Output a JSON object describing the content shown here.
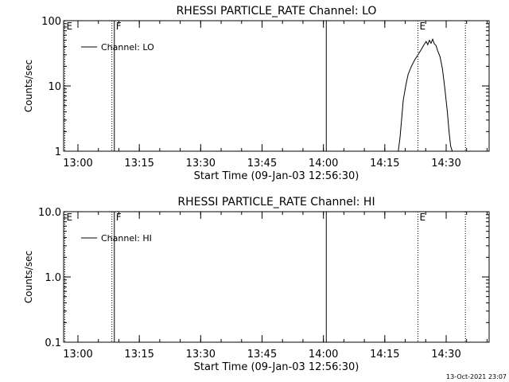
{
  "footer_timestamp": "13-Oct-2021 23:07",
  "chart_data": [
    {
      "type": "line",
      "title": "RHESSI PARTICLE_RATE Channel: LO",
      "xlabel": "Start Time (09-Jan-03 12:56:30)",
      "ylabel": "Counts/sec",
      "yscale": "log",
      "ylim": [
        1,
        100
      ],
      "y_ticks": [
        "1",
        "10",
        "100"
      ],
      "xlim_minutes": [
        0,
        104
      ],
      "x_ticks": [
        {
          "label": "13:00",
          "minute": 3.5
        },
        {
          "label": "13:15",
          "minute": 18.5
        },
        {
          "label": "13:30",
          "minute": 33.5
        },
        {
          "label": "13:45",
          "minute": 48.5
        },
        {
          "label": "14:00",
          "minute": 63.5
        },
        {
          "label": "14:15",
          "minute": 78.5
        },
        {
          "label": "14:30",
          "minute": 93.5
        }
      ],
      "legend": {
        "position": "top-left",
        "entries": [
          "Channel: LO"
        ]
      },
      "markers": [
        {
          "minute": 0.3,
          "style": "dotted",
          "label": "E"
        },
        {
          "minute": 11.8,
          "style": "dotted",
          "label": ""
        },
        {
          "minute": 12.4,
          "style": "solid",
          "label": "F"
        },
        {
          "minute": 64.2,
          "style": "solid",
          "label": ""
        },
        {
          "minute": 86.6,
          "style": "dotted",
          "label": "E"
        },
        {
          "minute": 98.2,
          "style": "dotted",
          "label": ""
        }
      ],
      "series": [
        {
          "name": "Channel: LO",
          "x_minutes": [
            81.8,
            82.2,
            82.6,
            83.0,
            83.6,
            84.2,
            85.0,
            85.8,
            86.6,
            87.4,
            88.0,
            88.6,
            89.0,
            89.4,
            89.8,
            90.2,
            90.6,
            91.0,
            91.4,
            92.0,
            92.6,
            93.2,
            93.8,
            94.2,
            94.6,
            95.0
          ],
          "y": [
            1,
            1.6,
            3,
            6,
            10,
            15,
            20,
            25,
            30,
            36,
            42,
            48,
            43,
            50,
            45,
            52,
            44,
            42,
            35,
            28,
            18,
            9,
            4,
            2,
            1.2,
            1
          ]
        }
      ]
    },
    {
      "type": "line",
      "title": "RHESSI PARTICLE_RATE Channel: HI",
      "xlabel": "Start Time (09-Jan-03 12:56:30)",
      "ylabel": "Counts/sec",
      "yscale": "log",
      "ylim": [
        0.1,
        10
      ],
      "y_ticks": [
        "0.1",
        "1.0",
        "10.0"
      ],
      "xlim_minutes": [
        0,
        104
      ],
      "x_ticks": [
        {
          "label": "13:00",
          "minute": 3.5
        },
        {
          "label": "13:15",
          "minute": 18.5
        },
        {
          "label": "13:30",
          "minute": 33.5
        },
        {
          "label": "13:45",
          "minute": 48.5
        },
        {
          "label": "14:00",
          "minute": 63.5
        },
        {
          "label": "14:15",
          "minute": 78.5
        },
        {
          "label": "14:30",
          "minute": 93.5
        }
      ],
      "legend": {
        "position": "top-left",
        "entries": [
          "Channel: HI"
        ]
      },
      "markers": [
        {
          "minute": 0.3,
          "style": "dotted",
          "label": "E"
        },
        {
          "minute": 11.8,
          "style": "dotted",
          "label": ""
        },
        {
          "minute": 12.4,
          "style": "solid",
          "label": "F"
        },
        {
          "minute": 64.2,
          "style": "solid",
          "label": ""
        },
        {
          "minute": 86.6,
          "style": "dotted",
          "label": "E"
        },
        {
          "minute": 98.2,
          "style": "dotted",
          "label": ""
        }
      ],
      "series": [
        {
          "name": "Channel: HI",
          "x_minutes": [],
          "y": []
        }
      ]
    }
  ]
}
